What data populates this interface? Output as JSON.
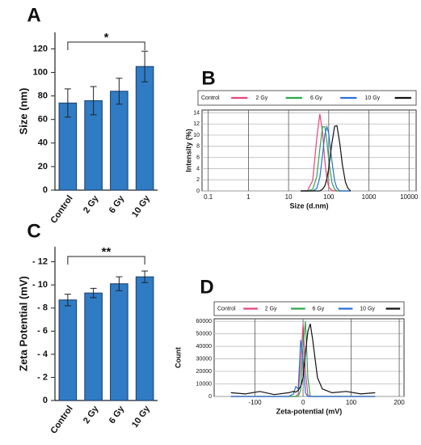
{
  "chart_data": [
    {
      "type": "bar",
      "panel_label": "A",
      "ylabel": "Size (nm)",
      "categories": [
        "Control",
        "2 Gy",
        "6 Gy",
        "10 Gy"
      ],
      "values": [
        74,
        76,
        84,
        105
      ],
      "errors": [
        12,
        12,
        11,
        13
      ],
      "color": "#2f7bc4",
      "ylim": [
        0,
        134
      ],
      "yticks": [
        0,
        20,
        40,
        60,
        80,
        100,
        120
      ],
      "annotation": "*"
    },
    {
      "type": "line",
      "panel_label": "B",
      "xlabel": "Size (d.nm)",
      "ylabel": "Intensity (%)",
      "log_x": true,
      "grid": true,
      "legend": "top",
      "x": [
        20,
        30,
        40,
        50,
        60,
        70,
        80,
        90,
        100,
        120,
        140,
        160,
        190,
        220,
        260,
        300,
        350
      ],
      "series": [
        {
          "name": "Control",
          "color": "#e8457a",
          "values": [
            0,
            0.1,
            1.9,
            9.3,
            13.8,
            10.6,
            5.4,
            2.1,
            0.7,
            0.1,
            0,
            0,
            0,
            0,
            0,
            0,
            0
          ]
        },
        {
          "name": "2 Gy",
          "color": "#2aa84a",
          "values": [
            0,
            0,
            0.3,
            2.5,
            7.5,
            11.5,
            11.5,
            8.8,
            5.5,
            1.5,
            0.3,
            0,
            0,
            0,
            0,
            0,
            0
          ]
        },
        {
          "name": "6 Gy",
          "color": "#2a6fd6",
          "values": [
            0,
            0,
            0,
            0.4,
            2.4,
            6.4,
            10.1,
            11.5,
            10.3,
            5.3,
            1.8,
            0.5,
            0,
            0,
            0,
            0,
            0
          ]
        },
        {
          "name": "10 Gy",
          "color": "#111111",
          "values": [
            0,
            0,
            0,
            0,
            0,
            0.3,
            0.9,
            2.2,
            4.1,
            8.6,
            11.6,
            11.7,
            8.3,
            4.6,
            1.6,
            0.5,
            0
          ]
        }
      ],
      "xlim": [
        0.07,
        15000
      ],
      "xticks": [
        0.1,
        1,
        10,
        100,
        1000,
        10000
      ],
      "ylim": [
        0,
        14.5
      ],
      "yticks": [
        0,
        2,
        4,
        6,
        8,
        10,
        12,
        14
      ]
    },
    {
      "type": "bar",
      "panel_label": "C",
      "ylabel": "Zeta Potential (mV)",
      "categories": [
        "Control",
        "2 Gy",
        "6 Gy",
        "10 Gy"
      ],
      "values": [
        -8.7,
        -9.3,
        -10.1,
        -10.7
      ],
      "errors": [
        0.5,
        0.4,
        0.6,
        0.5
      ],
      "color": "#2f7bc4",
      "ylim": [
        0,
        -13.3
      ],
      "yticks": [
        0,
        {
          "value": -2,
          "label": "- 2"
        },
        {
          "value": -4,
          "label": "- 4"
        },
        {
          "value": -6,
          "label": "- 6"
        },
        {
          "value": -8,
          "label": "- 8"
        },
        {
          "value": -10,
          "label": "- 10"
        },
        {
          "value": -12,
          "label": "- 12"
        }
      ],
      "annotation": "**"
    },
    {
      "type": "line",
      "panel_label": "D",
      "xlabel": "Zeta-potential (mV)",
      "ylabel": "Count",
      "log_x": false,
      "grid": true,
      "legend": "top",
      "x": [
        -150,
        -120,
        -90,
        -60,
        -30,
        -20,
        -15,
        -10,
        -5,
        0,
        5,
        10,
        15,
        20,
        30,
        40,
        60,
        90,
        120,
        150
      ],
      "series": [
        {
          "name": "Control",
          "color": "#e8457a",
          "values": [
            0,
            0,
            0,
            0,
            0,
            0,
            0,
            2000,
            25000,
            58000,
            20000,
            1000,
            0,
            0,
            0,
            0,
            0,
            0,
            0,
            0
          ]
        },
        {
          "name": "2 Gy",
          "color": "#2aa84a",
          "values": [
            0,
            0,
            0,
            0,
            0,
            0,
            0,
            0,
            5000,
            40000,
            60000,
            15000,
            0,
            0,
            0,
            0,
            0,
            0,
            0,
            0
          ]
        },
        {
          "name": "6 Gy",
          "color": "#2a6fd6",
          "values": [
            0,
            0,
            0,
            0,
            0,
            2000,
            8000,
            6000,
            45000,
            30000,
            3000,
            0,
            0,
            0,
            0,
            0,
            0,
            0,
            0,
            0
          ]
        },
        {
          "name": "10 Gy",
          "color": "#111111",
          "values": [
            3000,
            2000,
            4000,
            1500,
            3000,
            4000,
            3500,
            5000,
            8000,
            15000,
            35000,
            52000,
            58000,
            45000,
            15000,
            6000,
            3000,
            4000,
            2000,
            3000
          ]
        }
      ],
      "xlim": [
        -185,
        210
      ],
      "xticks": [
        -100,
        0,
        100,
        200
      ],
      "ylim": [
        0,
        62000
      ],
      "yticks": [
        0,
        10000,
        20000,
        30000,
        40000,
        50000,
        60000
      ]
    }
  ]
}
